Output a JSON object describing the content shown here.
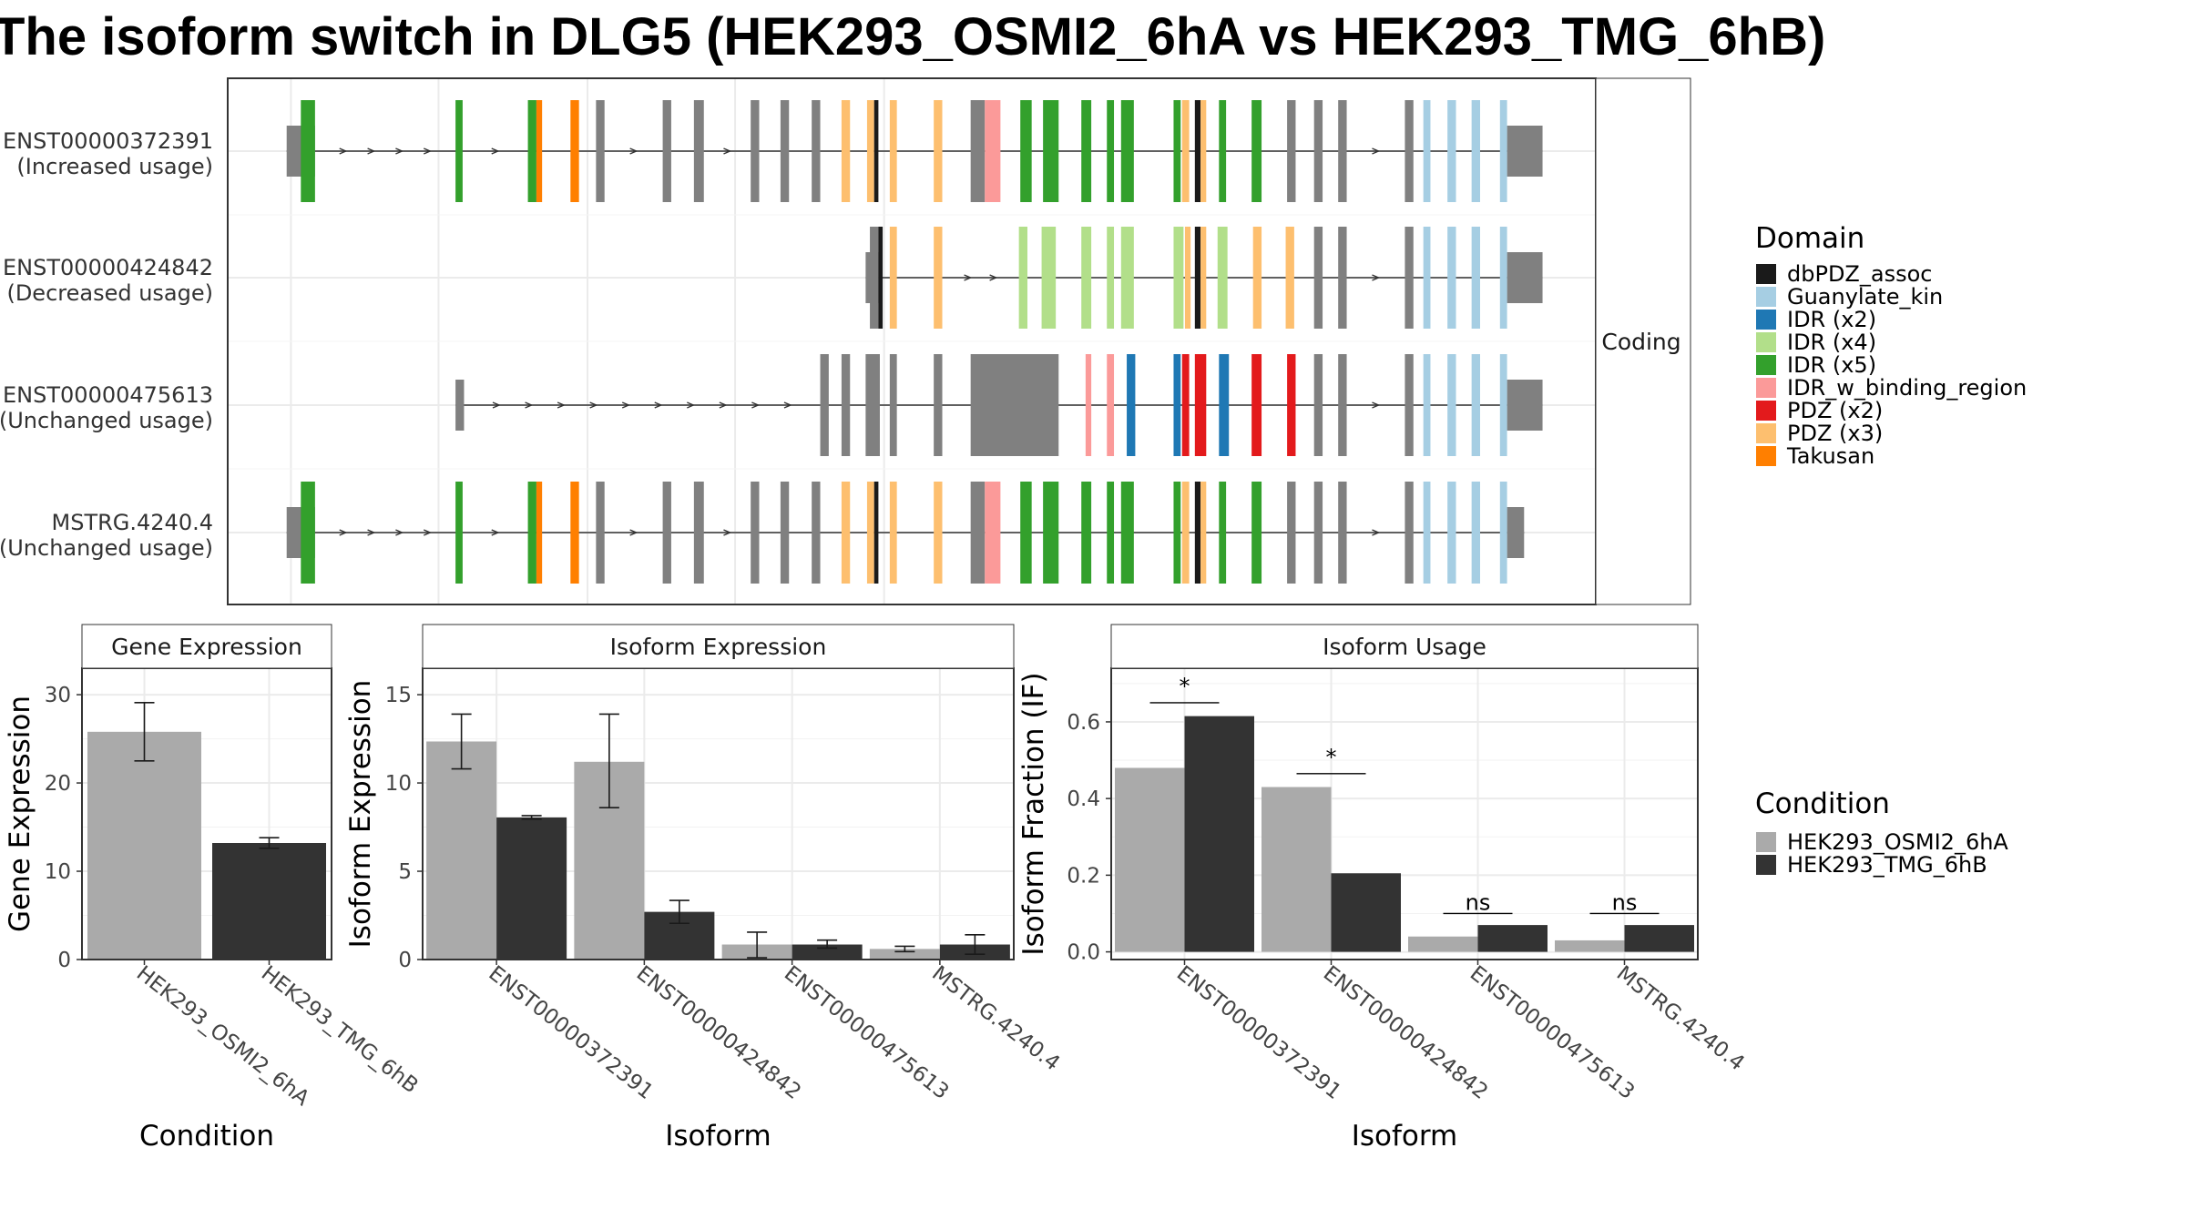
{
  "title": "The isoform switch in DLG5 (HEK293_OSMI2_6hA vs HEK293_TMG_6hB)",
  "colors": {
    "HEK293_OSMI2_6hA": "#aaaaaa",
    "HEK293_TMG_6hB": "#333333",
    "exon": "#808080",
    "dbPDZ_assoc": "#1a1a1a",
    "Guanylate_kin": "#a6cee3",
    "IDR (x2)": "#1f78b4",
    "IDR (x4)": "#b2df8a",
    "IDR (x5)": "#33a02c",
    "IDR_w_binding_region": "#fb9a99",
    "PDZ (x2)": "#e31a1c",
    "PDZ (x3)": "#fdbf6f",
    "Takusan": "#ff7f00"
  },
  "chart_data": [
    {
      "type": "gene_structure",
      "facet_label": "Coding",
      "isoforms": [
        {
          "id": "ENST00000372391",
          "usage": "(Increased usage)",
          "start": 202,
          "end": 1087,
          "utr5": [
            202,
            222
          ],
          "utr3": [
            1062,
            1087
          ],
          "exons": [
            [
              212,
              222,
              "IDR (x5)"
            ],
            [
              321,
              326,
              "IDR (x5)"
            ],
            [
              372,
              378,
              "IDR (x5)"
            ],
            [
              378,
              382,
              "Takusan"
            ],
            [
              402,
              408,
              "Takusan"
            ],
            [
              420,
              426,
              null
            ],
            [
              467,
              473,
              null
            ],
            [
              489,
              496,
              null
            ],
            [
              529,
              535,
              null
            ],
            [
              550,
              556,
              null
            ],
            [
              572,
              578,
              null
            ],
            [
              593,
              599,
              "PDZ (x3)"
            ],
            [
              611,
              616,
              "PDZ (x3)"
            ],
            [
              616,
              619,
              "dbPDZ_assoc"
            ],
            [
              627,
              632,
              "PDZ (x3)"
            ],
            [
              658,
              664,
              "PDZ (x3)"
            ],
            [
              684,
              694,
              null
            ],
            [
              694,
              705,
              "IDR_w_binding_region"
            ],
            [
              719,
              727,
              "IDR (x5)"
            ],
            [
              735,
              746,
              "IDR (x5)"
            ],
            [
              762,
              769,
              "IDR (x5)"
            ],
            [
              780,
              785,
              "IDR (x5)"
            ],
            [
              790,
              799,
              "IDR (x5)"
            ],
            [
              827,
              832,
              "IDR (x5)"
            ],
            [
              833,
              838,
              "PDZ (x3)"
            ],
            [
              842,
              846,
              "dbPDZ_assoc"
            ],
            [
              846,
              850,
              "PDZ (x3)"
            ],
            [
              859,
              864,
              "IDR (x5)"
            ],
            [
              882,
              889,
              "IDR (x5)"
            ],
            [
              907,
              913,
              null
            ],
            [
              926,
              932,
              null
            ],
            [
              943,
              949,
              null
            ],
            [
              990,
              996,
              null
            ],
            [
              1003,
              1008,
              "Guanylate_kin"
            ],
            [
              1020,
              1026,
              "Guanylate_kin"
            ],
            [
              1037,
              1043,
              "Guanylate_kin"
            ],
            [
              1057,
              1062,
              "Guanylate_kin"
            ]
          ]
        },
        {
          "id": "ENST00000424842",
          "usage": "(Decreased usage)",
          "start": 610,
          "end": 1087,
          "utr5": [
            610,
            619
          ],
          "utr3": [
            1062,
            1087
          ],
          "exons": [
            [
              613,
              619,
              null
            ],
            [
              619,
              622,
              "dbPDZ_assoc"
            ],
            [
              627,
              632,
              "PDZ (x3)"
            ],
            [
              658,
              664,
              "PDZ (x3)"
            ],
            [
              718,
              724,
              "IDR (x4)"
            ],
            [
              734,
              744,
              "IDR (x4)"
            ],
            [
              762,
              769,
              "IDR (x4)"
            ],
            [
              780,
              785,
              "IDR (x4)"
            ],
            [
              790,
              799,
              "IDR (x4)"
            ],
            [
              827,
              834,
              "IDR (x4)"
            ],
            [
              835,
              839,
              "PDZ (x3)"
            ],
            [
              842,
              846,
              "dbPDZ_assoc"
            ],
            [
              846,
              850,
              "PDZ (x3)"
            ],
            [
              858,
              865,
              "IDR (x4)"
            ],
            [
              883,
              889,
              "PDZ (x3)"
            ],
            [
              906,
              912,
              "PDZ (x3)"
            ],
            [
              926,
              932,
              null
            ],
            [
              943,
              949,
              null
            ],
            [
              990,
              996,
              null
            ],
            [
              1003,
              1008,
              "Guanylate_kin"
            ],
            [
              1020,
              1026,
              "Guanylate_kin"
            ],
            [
              1037,
              1043,
              "Guanylate_kin"
            ],
            [
              1057,
              1062,
              "Guanylate_kin"
            ]
          ]
        },
        {
          "id": "ENST00000475613",
          "usage": "(Unchanged usage)",
          "start": 321,
          "end": 1087,
          "utr5": [
            321,
            327
          ],
          "utr3": [
            1062,
            1087
          ],
          "exons": [
            [
              578,
              584,
              null
            ],
            [
              593,
              599,
              null
            ],
            [
              610,
              620,
              null
            ],
            [
              627,
              632,
              null
            ],
            [
              658,
              664,
              null
            ],
            [
              684,
              746,
              null
            ],
            [
              765,
              769,
              "IDR_w_binding_region"
            ],
            [
              780,
              785,
              "IDR_w_binding_region"
            ],
            [
              794,
              800,
              "IDR (x2)"
            ],
            [
              827,
              832,
              "IDR (x2)"
            ],
            [
              833,
              838,
              "PDZ (x2)"
            ],
            [
              842,
              850,
              "PDZ (x2)"
            ],
            [
              859,
              866,
              "IDR (x2)"
            ],
            [
              882,
              889,
              "PDZ (x2)"
            ],
            [
              907,
              913,
              "PDZ (x2)"
            ],
            [
              926,
              932,
              null
            ],
            [
              943,
              949,
              null
            ],
            [
              990,
              996,
              null
            ],
            [
              1003,
              1008,
              "Guanylate_kin"
            ],
            [
              1020,
              1026,
              "Guanylate_kin"
            ],
            [
              1037,
              1043,
              "Guanylate_kin"
            ],
            [
              1057,
              1062,
              "Guanylate_kin"
            ]
          ]
        },
        {
          "id": "MSTRG.4240.4",
          "usage": "(Unchanged usage)",
          "start": 202,
          "end": 1074,
          "utr5": [
            202,
            222
          ],
          "utr3": [
            1062,
            1074
          ],
          "exons": [
            [
              212,
              222,
              "IDR (x5)"
            ],
            [
              321,
              326,
              "IDR (x5)"
            ],
            [
              372,
              378,
              "IDR (x5)"
            ],
            [
              378,
              382,
              "Takusan"
            ],
            [
              402,
              408,
              "Takusan"
            ],
            [
              420,
              426,
              null
            ],
            [
              467,
              473,
              null
            ],
            [
              489,
              496,
              null
            ],
            [
              529,
              535,
              null
            ],
            [
              550,
              556,
              null
            ],
            [
              572,
              578,
              null
            ],
            [
              593,
              599,
              "PDZ (x3)"
            ],
            [
              611,
              616,
              "PDZ (x3)"
            ],
            [
              616,
              619,
              "dbPDZ_assoc"
            ],
            [
              627,
              632,
              "PDZ (x3)"
            ],
            [
              658,
              664,
              "PDZ (x3)"
            ],
            [
              684,
              694,
              null
            ],
            [
              694,
              705,
              "IDR_w_binding_region"
            ],
            [
              719,
              727,
              "IDR (x5)"
            ],
            [
              735,
              746,
              "IDR (x5)"
            ],
            [
              762,
              769,
              "IDR (x5)"
            ],
            [
              780,
              785,
              "IDR (x5)"
            ],
            [
              790,
              799,
              "IDR (x5)"
            ],
            [
              827,
              832,
              "IDR (x5)"
            ],
            [
              833,
              838,
              "PDZ (x3)"
            ],
            [
              842,
              846,
              "dbPDZ_assoc"
            ],
            [
              846,
              850,
              "PDZ (x3)"
            ],
            [
              859,
              864,
              "IDR (x5)"
            ],
            [
              882,
              889,
              "IDR (x5)"
            ],
            [
              907,
              913,
              null
            ],
            [
              926,
              932,
              null
            ],
            [
              943,
              949,
              null
            ],
            [
              990,
              996,
              null
            ],
            [
              1003,
              1008,
              "Guanylate_kin"
            ],
            [
              1020,
              1026,
              "Guanylate_kin"
            ],
            [
              1037,
              1043,
              "Guanylate_kin"
            ],
            [
              1057,
              1062,
              "Guanylate_kin"
            ]
          ]
        }
      ],
      "legend": {
        "title": "Domain",
        "entries": [
          "dbPDZ_assoc",
          "Guanylate_kin",
          "IDR (x2)",
          "IDR (x4)",
          "IDR (x5)",
          "IDR_w_binding_region",
          "PDZ (x2)",
          "PDZ (x3)",
          "Takusan"
        ]
      }
    },
    {
      "type": "bar",
      "strip": "Gene Expression",
      "xlabel": "Condition",
      "ylabel": "Gene Expression",
      "categories": [
        "HEK293_OSMI2_6hA",
        "HEK293_TMG_6hB"
      ],
      "values": [
        25.8,
        13.2
      ],
      "errors": [
        [
          22.5,
          29.1
        ],
        [
          12.6,
          13.8
        ]
      ],
      "ylim": [
        0,
        33
      ],
      "yticks": [
        0,
        10,
        20,
        30
      ]
    },
    {
      "type": "bar",
      "strip": "Isoform Expression",
      "xlabel": "Isoform",
      "ylabel": "Isoform Expression",
      "categories": [
        "ENST00000372391",
        "ENST00000424842",
        "ENST00000475613",
        "MSTRG.4240.4"
      ],
      "series": [
        {
          "name": "HEK293_OSMI2_6hA",
          "values": [
            12.35,
            11.2,
            0.85,
            0.6
          ],
          "errors": [
            [
              10.8,
              13.9
            ],
            [
              8.6,
              13.9
            ],
            [
              0.1,
              1.55
            ],
            [
              0.45,
              0.75
            ]
          ]
        },
        {
          "name": "HEK293_TMG_6hB",
          "values": [
            8.05,
            2.7,
            0.85,
            0.85
          ],
          "errors": [
            [
              7.95,
              8.15
            ],
            [
              2.05,
              3.35
            ],
            [
              0.65,
              1.1
            ],
            [
              0.3,
              1.4
            ]
          ]
        }
      ],
      "ylim": [
        0,
        16.5
      ],
      "yticks": [
        0,
        5,
        10,
        15
      ]
    },
    {
      "type": "bar",
      "strip": "Isoform Usage",
      "xlabel": "Isoform",
      "ylabel": "Isoform Fraction (IF)",
      "categories": [
        "ENST00000372391",
        "ENST00000424842",
        "ENST00000475613",
        "MSTRG.4240.4"
      ],
      "series": [
        {
          "name": "HEK293_OSMI2_6hA",
          "values": [
            0.48,
            0.43,
            0.04,
            0.03
          ]
        },
        {
          "name": "HEK293_TMG_6hB",
          "values": [
            0.615,
            0.205,
            0.07,
            0.07
          ]
        }
      ],
      "significance": [
        {
          "label": "*",
          "y": 0.65
        },
        {
          "label": "*",
          "y": 0.465
        },
        {
          "label": "ns",
          "y": 0.1
        },
        {
          "label": "ns",
          "y": 0.1
        }
      ],
      "ylim": [
        -0.02,
        0.74
      ],
      "yticks": [
        0.0,
        0.2,
        0.4,
        0.6
      ],
      "ytick_labels": [
        "0.0",
        "0.2",
        "0.4",
        "0.6"
      ]
    }
  ],
  "condition_legend": {
    "title": "Condition",
    "entries": [
      "HEK293_OSMI2_6hA",
      "HEK293_TMG_6hB"
    ]
  }
}
